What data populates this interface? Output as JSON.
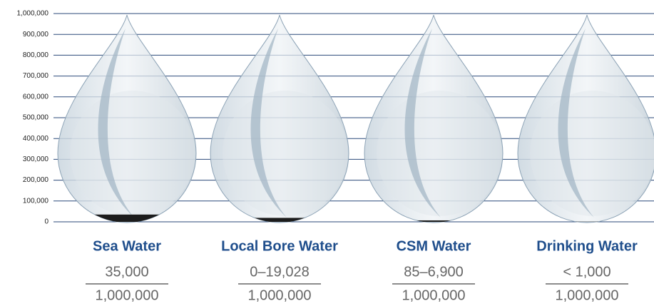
{
  "chart_data": {
    "type": "drop",
    "categories": [
      "Sea Water",
      "Local Bore Water",
      "CSM Water",
      "Drinking Water"
    ],
    "values": [
      35000,
      19028,
      6900,
      1000
    ],
    "value_labels": [
      "35,000",
      "0–19,028",
      "85–6,900",
      "< 1,000"
    ],
    "denominator_label": "1,000,000",
    "color": "#1c1c1c",
    "ylim": [
      0,
      1000000
    ],
    "yticks": [
      0,
      {
        "value": 100000,
        "label": "100,000"
      },
      {
        "value": 200000,
        "label": "200,000"
      },
      {
        "value": 300000,
        "label": "300,000"
      },
      {
        "value": 400000,
        "label": "400,000"
      },
      {
        "value": 500000,
        "label": "500,000"
      },
      {
        "value": 600000,
        "label": "600,000"
      },
      {
        "value": 700000,
        "label": "700,000"
      },
      {
        "value": 800000,
        "label": "800,000"
      },
      {
        "value": 900000,
        "label": "900,000"
      },
      {
        "value": 1000000,
        "label": "1,000,000"
      }
    ],
    "grid": true
  }
}
